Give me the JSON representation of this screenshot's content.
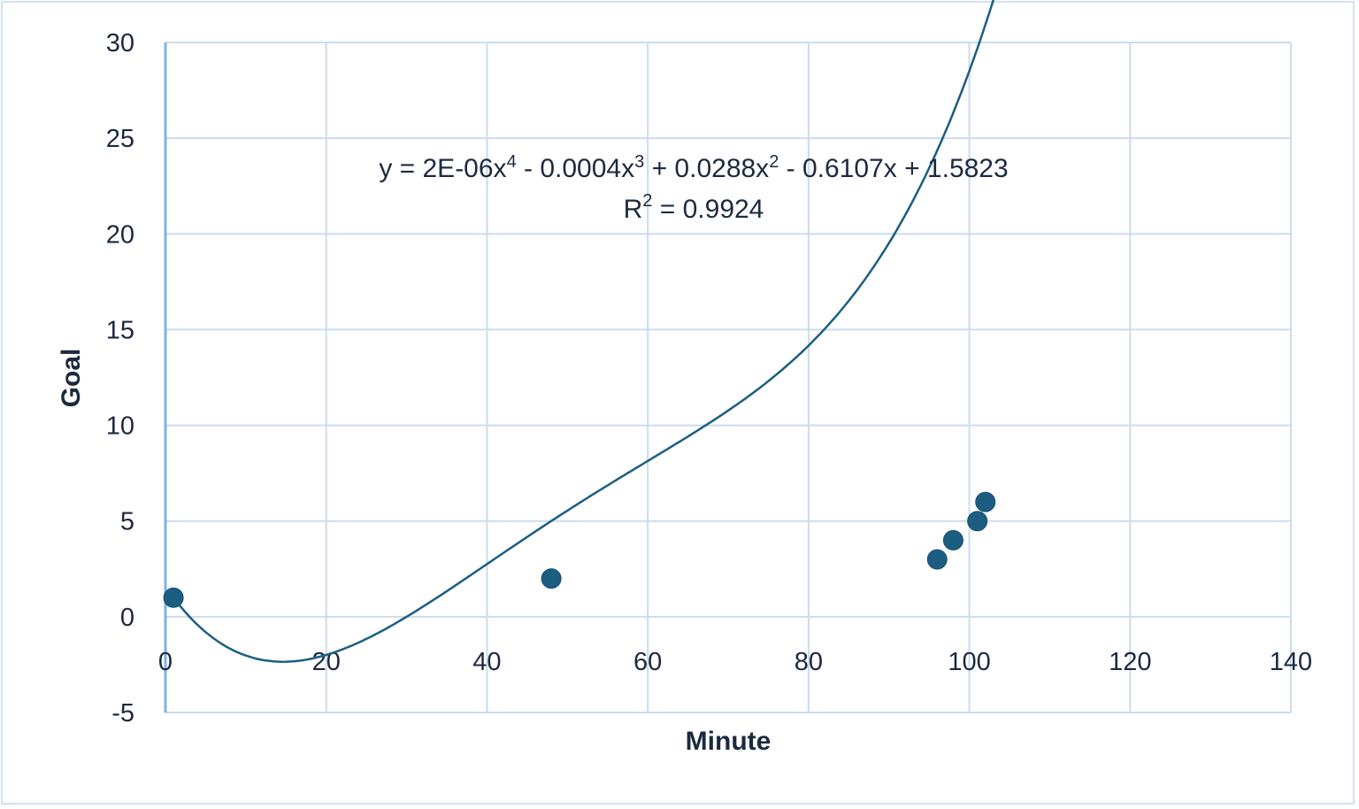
{
  "chart_data": {
    "type": "scatter",
    "title": "",
    "xlabel": "Minute",
    "ylabel": "Goal",
    "xlim": [
      0,
      140
    ],
    "ylim": [
      -5,
      30
    ],
    "x_ticks": [
      0,
      20,
      40,
      60,
      80,
      100,
      120,
      140
    ],
    "y_ticks": [
      -5,
      0,
      5,
      10,
      15,
      20,
      25,
      30
    ],
    "grid": true,
    "legend": null,
    "series": [
      {
        "name": "Goal",
        "points": [
          {
            "x": 1,
            "y": 1
          },
          {
            "x": 48,
            "y": 2
          },
          {
            "x": 96,
            "y": 3
          },
          {
            "x": 98,
            "y": 4
          },
          {
            "x": 101,
            "y": 5
          },
          {
            "x": 102,
            "y": 6
          }
        ],
        "color": "#1b5e82"
      }
    ],
    "trendline": {
      "type": "polynomial",
      "order": 4,
      "coefficients": [
        2e-06,
        -0.0004,
        0.0288,
        -0.6107,
        1.5823
      ],
      "x_range": [
        1,
        120
      ],
      "equation_label": "y = 2E-06x⁴ - 0.0004x³ + 0.0288x² - 0.6107x + 1.5823",
      "r2_label": "R² = 0.9924",
      "color": "#1b5e82"
    }
  },
  "labels": {
    "xlabel": "Minute",
    "ylabel": "Goal",
    "eq_prefix": "y = 2E-06x",
    "eq_p4": "4",
    "eq_t3": " - 0.0004x",
    "eq_p3": "3",
    "eq_t2": " + 0.0288x",
    "eq_p2": "2",
    "eq_rest": " - 0.6107x + 1.5823",
    "r2_prefix": "R",
    "r2_sup": "2",
    "r2_rest": " = 0.9924"
  },
  "colors": {
    "grid": "#c9dcf0",
    "axis": "#7fb0e6",
    "series": "#1b5e82",
    "text": "#1b2a3f",
    "border": "#cfe1f5"
  }
}
